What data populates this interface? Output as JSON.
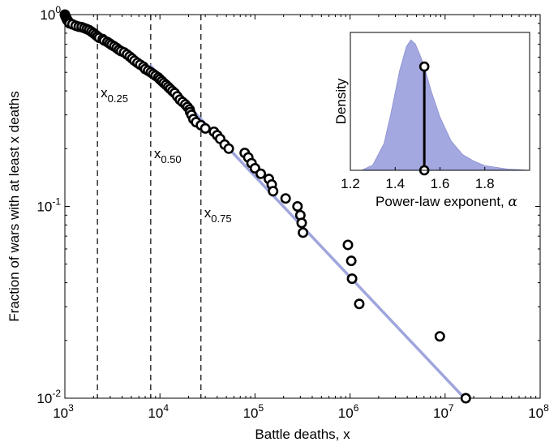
{
  "chart_data": [
    {
      "type": "scatter",
      "xlabel": "Battle deaths, x",
      "ylabel": "Fraction of wars with at least x deaths",
      "xscale": "log",
      "yscale": "log",
      "xlim": [
        1000,
        100000000
      ],
      "ylim": [
        0.01,
        1
      ],
      "xticks": [
        {
          "base": "10",
          "exp": "3",
          "value": 1000
        },
        {
          "base": "10",
          "exp": "4",
          "value": 10000
        },
        {
          "base": "10",
          "exp": "5",
          "value": 100000
        },
        {
          "base": "10",
          "exp": "6",
          "value": 1000000
        },
        {
          "base": "10",
          "exp": "7",
          "value": 10000000
        },
        {
          "base": "10",
          "exp": "8",
          "value": 100000000
        }
      ],
      "yticks": [
        {
          "base": "10",
          "exp": "-2",
          "value": 0.01
        },
        {
          "base": "10",
          "exp": "-1",
          "value": 0.1
        },
        {
          "base": "10",
          "exp": "0",
          "value": 1
        }
      ],
      "grid": false,
      "series": [
        {
          "kind": "points",
          "marker": "open-circle",
          "color": "#000000",
          "points": [
            [
              1000,
              1.0
            ],
            [
              1010,
              0.985
            ],
            [
              1020,
              0.975
            ],
            [
              1030,
              0.965
            ],
            [
              1040,
              0.955
            ],
            [
              1050,
              0.945
            ],
            [
              1060,
              0.935
            ],
            [
              1080,
              0.925
            ],
            [
              1100,
              0.915
            ],
            [
              1120,
              0.9
            ],
            [
              1200,
              0.89
            ],
            [
              1300,
              0.875
            ],
            [
              1400,
              0.865
            ],
            [
              1500,
              0.86
            ],
            [
              1600,
              0.85
            ],
            [
              1700,
              0.84
            ],
            [
              1800,
              0.83
            ],
            [
              1900,
              0.815
            ],
            [
              2000,
              0.8
            ],
            [
              2100,
              0.785
            ],
            [
              2200,
              0.77
            ],
            [
              2300,
              0.757
            ],
            [
              2500,
              0.745
            ],
            [
              2600,
              0.732
            ],
            [
              2800,
              0.72
            ],
            [
              2950,
              0.708
            ],
            [
              3100,
              0.695
            ],
            [
              3300,
              0.683
            ],
            [
              3500,
              0.67
            ],
            [
              3700,
              0.655
            ],
            [
              3900,
              0.645
            ],
            [
              4200,
              0.635
            ],
            [
              4500,
              0.62
            ],
            [
              4800,
              0.605
            ],
            [
              5100,
              0.59
            ],
            [
              5400,
              0.575
            ],
            [
              5800,
              0.56
            ],
            [
              6200,
              0.548
            ],
            [
              6700,
              0.535
            ],
            [
              7000,
              0.52
            ],
            [
              7500,
              0.51
            ],
            [
              8000,
              0.5
            ],
            [
              8500,
              0.49
            ],
            [
              9000,
              0.48
            ],
            [
              9600,
              0.47
            ],
            [
              10000,
              0.46
            ],
            [
              10500,
              0.45
            ],
            [
              11000,
              0.44
            ],
            [
              11600,
              0.43
            ],
            [
              12200,
              0.42
            ],
            [
              12800,
              0.41
            ],
            [
              13500,
              0.4
            ],
            [
              14300,
              0.39
            ],
            [
              15200,
              0.375
            ],
            [
              16200,
              0.36
            ],
            [
              17300,
              0.35
            ],
            [
              18500,
              0.34
            ],
            [
              19500,
              0.33
            ],
            [
              20500,
              0.32
            ],
            [
              20800,
              0.31
            ],
            [
              21500,
              0.3
            ],
            [
              22500,
              0.285
            ],
            [
              24000,
              0.275
            ],
            [
              27000,
              0.265
            ],
            [
              30000,
              0.255
            ],
            [
              37000,
              0.245
            ],
            [
              40000,
              0.235
            ],
            [
              43000,
              0.225
            ],
            [
              48000,
              0.21
            ],
            [
              53000,
              0.2
            ],
            [
              78000,
              0.19
            ],
            [
              85000,
              0.18
            ],
            [
              92000,
              0.168
            ],
            [
              100000,
              0.158
            ],
            [
              115000,
              0.148
            ],
            [
              140000,
              0.139
            ],
            [
              150000,
              0.13
            ],
            [
              155000,
              0.12
            ],
            [
              210000,
              0.11
            ],
            [
              280000,
              0.1
            ],
            [
              300000,
              0.09
            ],
            [
              310000,
              0.082
            ],
            [
              320000,
              0.073
            ],
            [
              950000,
              0.063
            ],
            [
              1030000,
              0.052
            ],
            [
              1050000,
              0.042
            ],
            [
              1250000,
              0.031
            ],
            [
              8800000,
              0.021
            ],
            [
              16500000,
              0.01
            ]
          ]
        },
        {
          "kind": "fit-line",
          "color": "#9fa6dd",
          "points": [
            [
              8000,
              0.54
            ],
            [
              16000000,
              0.01
            ]
          ]
        }
      ],
      "reference_lines": [
        {
          "x": 2200,
          "label_base": "x",
          "label_sub": "0.25"
        },
        {
          "x": 8000,
          "label_base": "x",
          "label_sub": "0.50"
        },
        {
          "x": 27000,
          "label_base": "x",
          "label_sub": "0.75"
        }
      ]
    },
    {
      "type": "area",
      "inset": true,
      "xlabel": "Power-law exponent, ",
      "xlabel_symbol": "α",
      "ylabel": "Density",
      "xlim": [
        1.2,
        2.0
      ],
      "xticks": [
        "1.2",
        "1.4",
        "1.6",
        "1.8"
      ],
      "xtick_values": [
        1.2,
        1.4,
        1.6,
        1.8
      ],
      "color": "#a4a8e0",
      "density": [
        [
          1.25,
          0.0
        ],
        [
          1.3,
          0.04
        ],
        [
          1.35,
          0.2
        ],
        [
          1.38,
          0.42
        ],
        [
          1.42,
          0.75
        ],
        [
          1.45,
          0.93
        ],
        [
          1.47,
          0.98
        ],
        [
          1.49,
          0.95
        ],
        [
          1.51,
          0.87
        ],
        [
          1.53,
          0.78
        ],
        [
          1.56,
          0.6
        ],
        [
          1.6,
          0.4
        ],
        [
          1.65,
          0.22
        ],
        [
          1.7,
          0.12
        ],
        [
          1.75,
          0.07
        ],
        [
          1.8,
          0.035
        ],
        [
          1.9,
          0.01
        ],
        [
          2.0,
          0.0
        ]
      ],
      "marker_line": {
        "x": 1.53,
        "y_bottom": 0.0,
        "y_top": 0.78
      }
    }
  ]
}
